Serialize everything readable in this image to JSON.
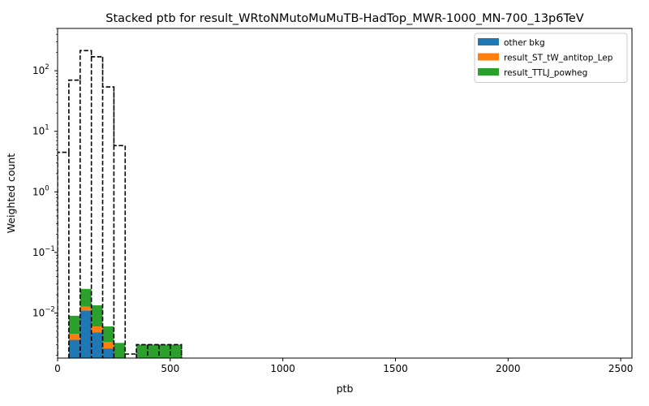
{
  "chart_data": {
    "type": "bar",
    "stacked": true,
    "title": "Stacked ptb for result_WRtoNMutoMuMuTB-HadTop_MWR-1000_MN-700_13p6TeV",
    "xlabel": "ptb",
    "ylabel": "Weighted count",
    "xlim": [
      0,
      2550
    ],
    "ylim": [
      0.0018,
      500
    ],
    "yscale": "log",
    "bin_width": 50,
    "x_ticks": [
      0,
      500,
      1000,
      1500,
      2000,
      2500
    ],
    "y_ticks": [
      {
        "value": 0.01,
        "base": "10",
        "exp": "−2"
      },
      {
        "value": 0.1,
        "base": "10",
        "exp": "−1"
      },
      {
        "value": 1,
        "base": "10",
        "exp": "0"
      },
      {
        "value": 10,
        "base": "10",
        "exp": "1"
      },
      {
        "value": 100,
        "base": "10",
        "exp": "2"
      }
    ],
    "bin_edges": [
      50,
      100,
      150,
      200,
      250,
      300,
      350,
      400,
      450,
      500,
      550
    ],
    "series": [
      {
        "name": "other bkg",
        "color": "#1f77b4",
        "values": [
          0.0036,
          0.011,
          0.0048,
          0.0026,
          0,
          0,
          0,
          0,
          0,
          0
        ]
      },
      {
        "name": "result_ST_tW_antitop_Lep",
        "color": "#ff7f0e",
        "values": [
          0.0009,
          0.0017,
          0.0012,
          0.0007,
          0,
          0,
          0,
          0,
          0,
          0
        ]
      },
      {
        "name": "result_TTLJ_powheg",
        "color": "#2ca02c",
        "values": [
          0.0045,
          0.0123,
          0.0074,
          0.0027,
          0.0032,
          0,
          0.003,
          0.003,
          0.003,
          0.003
        ]
      }
    ],
    "signal": {
      "style": "dashed-step",
      "color": "#000000",
      "bin_edges": [
        0,
        50,
        100,
        150,
        200,
        250,
        300,
        350,
        400,
        450,
        500,
        550
      ],
      "values": [
        4.5,
        70,
        215,
        170,
        54,
        5.8,
        0.0021,
        0.003,
        0.003,
        0.003,
        0.003
      ]
    },
    "legend_position": "top-right",
    "grid": false
  }
}
